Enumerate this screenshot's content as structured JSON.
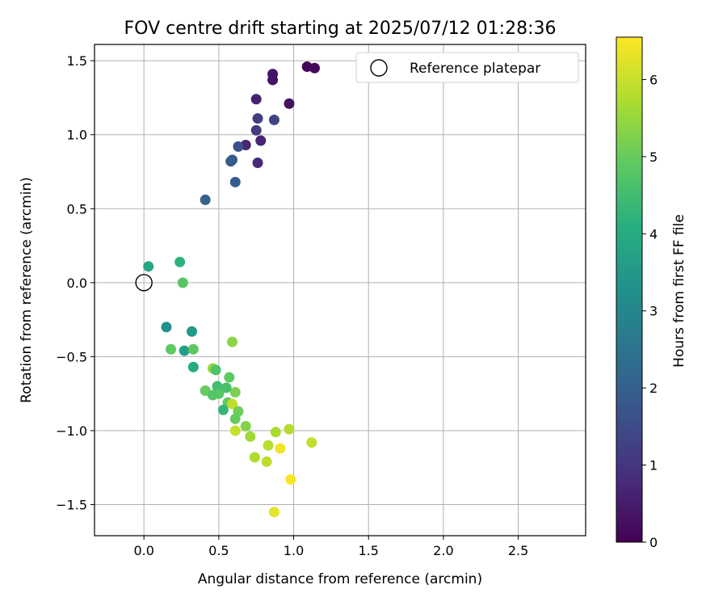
{
  "chart_data": {
    "type": "scatter",
    "title": "FOV centre drift starting at 2025/07/12 01:28:36",
    "xlabel": "Angular distance from reference (arcmin)",
    "ylabel": "Rotation from reference (arcmin)",
    "xlim": [
      -0.33,
      2.95
    ],
    "ylim": [
      -1.71,
      1.61
    ],
    "xticks": [
      0.0,
      0.5,
      1.0,
      1.5,
      2.0,
      2.5
    ],
    "xtick_labels": [
      "0.0",
      "0.5",
      "1.0",
      "1.5",
      "2.0",
      "2.5"
    ],
    "yticks": [
      -1.5,
      -1.0,
      -0.5,
      0.0,
      0.5,
      1.0,
      1.5
    ],
    "ytick_labels": [
      "−1.5",
      "−1.0",
      "−0.5",
      "0.0",
      "0.5",
      "1.0",
      "1.5"
    ],
    "grid": true,
    "legend": {
      "placement": "top-right",
      "entries": [
        "Reference platepar"
      ]
    },
    "reference_point": {
      "name": "Reference platepar",
      "x": 0.0,
      "y": 0.0
    },
    "colorbar": {
      "label": "Hours from first FF file",
      "range": [
        0,
        6.55
      ],
      "ticks": [
        0,
        1,
        2,
        3,
        4,
        5,
        6
      ],
      "tick_labels": [
        "0",
        "1",
        "2",
        "3",
        "4",
        "5",
        "6"
      ],
      "colormap": "viridis"
    },
    "points": [
      {
        "x": 1.09,
        "y": 1.46,
        "hours": 0.1
      },
      {
        "x": 1.14,
        "y": 1.45,
        "hours": 0.15
      },
      {
        "x": 0.86,
        "y": 1.41,
        "hours": 0.4
      },
      {
        "x": 0.86,
        "y": 1.37,
        "hours": 0.35
      },
      {
        "x": 0.97,
        "y": 1.21,
        "hours": 0.3
      },
      {
        "x": 0.75,
        "y": 1.24,
        "hours": 0.6
      },
      {
        "x": 0.76,
        "y": 1.11,
        "hours": 1.2
      },
      {
        "x": 0.87,
        "y": 1.1,
        "hours": 1.3
      },
      {
        "x": 0.75,
        "y": 1.03,
        "hours": 1.1
      },
      {
        "x": 0.78,
        "y": 0.96,
        "hours": 0.65
      },
      {
        "x": 0.68,
        "y": 0.93,
        "hours": 0.7
      },
      {
        "x": 0.63,
        "y": 0.92,
        "hours": 1.6
      },
      {
        "x": 0.59,
        "y": 0.83,
        "hours": 1.8
      },
      {
        "x": 0.58,
        "y": 0.82,
        "hours": 1.9
      },
      {
        "x": 0.76,
        "y": 0.81,
        "hours": 0.75
      },
      {
        "x": 0.61,
        "y": 0.68,
        "hours": 1.95
      },
      {
        "x": 0.41,
        "y": 0.56,
        "hours": 2.05
      },
      {
        "x": 0.03,
        "y": 0.11,
        "hours": 3.9
      },
      {
        "x": 0.24,
        "y": 0.14,
        "hours": 4.2
      },
      {
        "x": 0.26,
        "y": 0.0,
        "hours": 4.8
      },
      {
        "x": 0.15,
        "y": -0.3,
        "hours": 3.3
      },
      {
        "x": 0.32,
        "y": -0.33,
        "hours": 3.5
      },
      {
        "x": 0.18,
        "y": -0.45,
        "hours": 4.9
      },
      {
        "x": 0.27,
        "y": -0.46,
        "hours": 3.6
      },
      {
        "x": 0.33,
        "y": -0.45,
        "hours": 4.85
      },
      {
        "x": 0.59,
        "y": -0.4,
        "hours": 5.4
      },
      {
        "x": 0.33,
        "y": -0.57,
        "hours": 4.0
      },
      {
        "x": 0.46,
        "y": -0.58,
        "hours": 5.5
      },
      {
        "x": 0.48,
        "y": -0.59,
        "hours": 4.7
      },
      {
        "x": 0.57,
        "y": -0.64,
        "hours": 4.9
      },
      {
        "x": 0.49,
        "y": -0.7,
        "hours": 4.5
      },
      {
        "x": 0.55,
        "y": -0.71,
        "hours": 4.6
      },
      {
        "x": 0.41,
        "y": -0.73,
        "hours": 5.0
      },
      {
        "x": 0.46,
        "y": -0.76,
        "hours": 4.75
      },
      {
        "x": 0.5,
        "y": -0.75,
        "hours": 4.8
      },
      {
        "x": 0.61,
        "y": -0.74,
        "hours": 5.2
      },
      {
        "x": 0.56,
        "y": -0.81,
        "hours": 4.95
      },
      {
        "x": 0.59,
        "y": -0.82,
        "hours": 5.9
      },
      {
        "x": 0.53,
        "y": -0.86,
        "hours": 4.3
      },
      {
        "x": 0.63,
        "y": -0.87,
        "hours": 5.1
      },
      {
        "x": 0.61,
        "y": -0.92,
        "hours": 5.0
      },
      {
        "x": 0.68,
        "y": -0.97,
        "hours": 5.3
      },
      {
        "x": 0.61,
        "y": -1.0,
        "hours": 6.0
      },
      {
        "x": 0.71,
        "y": -1.04,
        "hours": 5.6
      },
      {
        "x": 0.88,
        "y": -1.01,
        "hours": 5.7
      },
      {
        "x": 0.97,
        "y": -0.99,
        "hours": 5.8
      },
      {
        "x": 0.83,
        "y": -1.1,
        "hours": 5.85
      },
      {
        "x": 0.91,
        "y": -1.12,
        "hours": 6.4
      },
      {
        "x": 1.12,
        "y": -1.08,
        "hours": 5.95
      },
      {
        "x": 0.74,
        "y": -1.18,
        "hours": 5.75
      },
      {
        "x": 0.82,
        "y": -1.21,
        "hours": 5.9
      },
      {
        "x": 0.98,
        "y": -1.33,
        "hours": 6.5
      },
      {
        "x": 0.87,
        "y": -1.55,
        "hours": 6.3
      }
    ]
  }
}
